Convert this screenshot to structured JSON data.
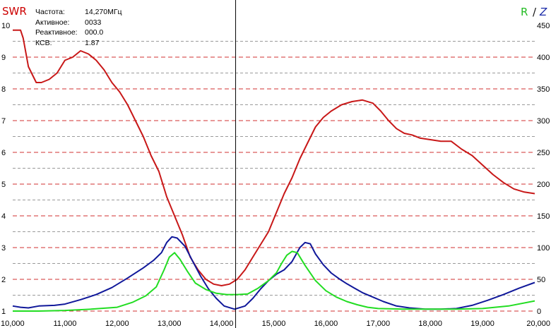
{
  "info": {
    "freq_label": "Частота:",
    "freq_value": "14,270МГц",
    "active_label": "Активное:",
    "active_value": "0033",
    "reactive_label": "Реактивное:",
    "reactive_value": "000.0",
    "swr_label": "КСВ:",
    "swr_value": "1.87"
  },
  "header": {
    "left_title": "SWR",
    "right_title_r": "R",
    "right_title_sep": "/",
    "right_title_z": "Z"
  },
  "colors": {
    "swr": "#c81818",
    "r": "#22dd22",
    "z": "#10189a",
    "grid_major": "#d03030",
    "grid_minor": "#9a9a9a",
    "cursor": "#000000"
  },
  "chart_data": {
    "type": "line",
    "cursor_x": 14.27,
    "x_ticks": [
      "10,000",
      "11,000",
      "12,000",
      "13,000",
      "14,000",
      "15,000",
      "16,000",
      "17,000",
      "18,000",
      "19,000",
      "20,000"
    ],
    "y_left_ticks": [
      "1",
      "2",
      "3",
      "4",
      "5",
      "6",
      "7",
      "8",
      "9",
      "10"
    ],
    "y_right_ticks": [
      "0",
      "50",
      "100",
      "150",
      "200",
      "250",
      "300",
      "350",
      "400",
      "450"
    ],
    "xlim": [
      10.0,
      20.0
    ],
    "ylim_left": [
      1,
      10
    ],
    "ylim_right": [
      0,
      450
    ],
    "series": [
      {
        "key": "swr",
        "axis": "left",
        "points": [
          [
            10.0,
            9.85
          ],
          [
            10.15,
            9.85
          ],
          [
            10.2,
            9.6
          ],
          [
            10.3,
            8.7
          ],
          [
            10.45,
            8.2
          ],
          [
            10.55,
            8.2
          ],
          [
            10.7,
            8.3
          ],
          [
            10.85,
            8.5
          ],
          [
            11.0,
            8.9
          ],
          [
            11.15,
            9.0
          ],
          [
            11.3,
            9.2
          ],
          [
            11.45,
            9.1
          ],
          [
            11.6,
            8.9
          ],
          [
            11.75,
            8.6
          ],
          [
            11.9,
            8.2
          ],
          [
            12.05,
            7.9
          ],
          [
            12.2,
            7.5
          ],
          [
            12.35,
            7.0
          ],
          [
            12.5,
            6.5
          ],
          [
            12.65,
            5.9
          ],
          [
            12.8,
            5.4
          ],
          [
            12.95,
            4.6
          ],
          [
            13.1,
            4.0
          ],
          [
            13.25,
            3.4
          ],
          [
            13.4,
            2.7
          ],
          [
            13.55,
            2.3
          ],
          [
            13.7,
            2.0
          ],
          [
            13.85,
            1.85
          ],
          [
            14.0,
            1.8
          ],
          [
            14.15,
            1.85
          ],
          [
            14.3,
            2.0
          ],
          [
            14.45,
            2.3
          ],
          [
            14.6,
            2.7
          ],
          [
            14.75,
            3.1
          ],
          [
            14.9,
            3.5
          ],
          [
            15.05,
            4.1
          ],
          [
            15.2,
            4.7
          ],
          [
            15.35,
            5.2
          ],
          [
            15.5,
            5.8
          ],
          [
            15.65,
            6.3
          ],
          [
            15.8,
            6.8
          ],
          [
            15.95,
            7.1
          ],
          [
            16.1,
            7.3
          ],
          [
            16.3,
            7.5
          ],
          [
            16.5,
            7.6
          ],
          [
            16.7,
            7.65
          ],
          [
            16.9,
            7.55
          ],
          [
            17.05,
            7.3
          ],
          [
            17.2,
            7.0
          ],
          [
            17.35,
            6.75
          ],
          [
            17.5,
            6.6
          ],
          [
            17.65,
            6.55
          ],
          [
            17.8,
            6.45
          ],
          [
            18.0,
            6.4
          ],
          [
            18.2,
            6.35
          ],
          [
            18.4,
            6.35
          ],
          [
            18.6,
            6.1
          ],
          [
            18.8,
            5.9
          ],
          [
            19.0,
            5.6
          ],
          [
            19.2,
            5.3
          ],
          [
            19.4,
            5.05
          ],
          [
            19.6,
            4.85
          ],
          [
            19.8,
            4.75
          ],
          [
            20.0,
            4.7
          ]
        ]
      },
      {
        "key": "z",
        "axis": "right",
        "points": [
          [
            10.0,
            8
          ],
          [
            10.15,
            6
          ],
          [
            10.3,
            5
          ],
          [
            10.5,
            8
          ],
          [
            10.8,
            9
          ],
          [
            11.0,
            11
          ],
          [
            11.3,
            18
          ],
          [
            11.6,
            26
          ],
          [
            11.9,
            37
          ],
          [
            12.2,
            52
          ],
          [
            12.5,
            68
          ],
          [
            12.7,
            80
          ],
          [
            12.85,
            92
          ],
          [
            12.95,
            108
          ],
          [
            13.05,
            117
          ],
          [
            13.15,
            115
          ],
          [
            13.3,
            102
          ],
          [
            13.45,
            78
          ],
          [
            13.6,
            55
          ],
          [
            13.75,
            35
          ],
          [
            13.9,
            20
          ],
          [
            14.05,
            8
          ],
          [
            14.25,
            3
          ],
          [
            14.45,
            8
          ],
          [
            14.6,
            20
          ],
          [
            14.75,
            35
          ],
          [
            14.9,
            48
          ],
          [
            15.05,
            58
          ],
          [
            15.2,
            65
          ],
          [
            15.35,
            78
          ],
          [
            15.5,
            100
          ],
          [
            15.6,
            108
          ],
          [
            15.7,
            106
          ],
          [
            15.8,
            90
          ],
          [
            15.95,
            73
          ],
          [
            16.1,
            60
          ],
          [
            16.25,
            51
          ],
          [
            16.4,
            43
          ],
          [
            16.55,
            36
          ],
          [
            16.7,
            29
          ],
          [
            16.9,
            22
          ],
          [
            17.1,
            15
          ],
          [
            17.35,
            8
          ],
          [
            17.6,
            5
          ],
          [
            17.9,
            3
          ],
          [
            18.2,
            3
          ],
          [
            18.5,
            4
          ],
          [
            18.8,
            9
          ],
          [
            19.1,
            17
          ],
          [
            19.4,
            26
          ],
          [
            19.7,
            36
          ],
          [
            20.0,
            45
          ]
        ]
      },
      {
        "key": "r",
        "axis": "right",
        "points": [
          [
            10.0,
            0
          ],
          [
            10.5,
            0
          ],
          [
            11.0,
            1
          ],
          [
            11.5,
            3
          ],
          [
            12.0,
            6
          ],
          [
            12.3,
            14
          ],
          [
            12.55,
            24
          ],
          [
            12.75,
            38
          ],
          [
            12.9,
            65
          ],
          [
            13.0,
            85
          ],
          [
            13.1,
            92
          ],
          [
            13.2,
            82
          ],
          [
            13.35,
            62
          ],
          [
            13.5,
            44
          ],
          [
            13.7,
            34
          ],
          [
            13.9,
            28
          ],
          [
            14.1,
            26
          ],
          [
            14.3,
            26
          ],
          [
            14.5,
            27
          ],
          [
            14.7,
            36
          ],
          [
            14.9,
            48
          ],
          [
            15.05,
            60
          ],
          [
            15.15,
            75
          ],
          [
            15.25,
            88
          ],
          [
            15.35,
            94
          ],
          [
            15.45,
            92
          ],
          [
            15.6,
            72
          ],
          [
            15.8,
            48
          ],
          [
            16.0,
            32
          ],
          [
            16.2,
            22
          ],
          [
            16.4,
            15
          ],
          [
            16.6,
            10
          ],
          [
            16.8,
            6
          ],
          [
            17.0,
            4
          ],
          [
            17.5,
            3
          ],
          [
            18.0,
            3
          ],
          [
            18.5,
            3
          ],
          [
            19.0,
            4
          ],
          [
            19.5,
            8
          ],
          [
            20.0,
            16
          ]
        ]
      }
    ]
  }
}
